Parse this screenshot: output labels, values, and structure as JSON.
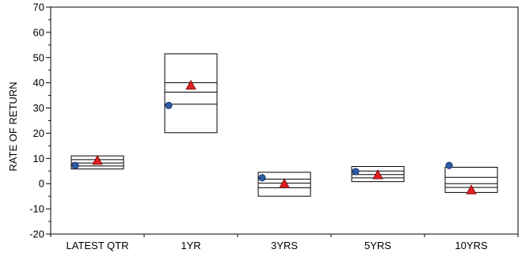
{
  "chart_data": {
    "type": "box",
    "ylabel": "RATE OF RETURN",
    "xlabel": "",
    "ylim": [
      -20,
      70
    ],
    "y_ticks": [
      -20,
      -10,
      0,
      10,
      20,
      30,
      40,
      50,
      60,
      70
    ],
    "y_tick_labels": [
      "-20",
      "-10",
      "0",
      "10",
      "20",
      "30",
      "40",
      "50",
      "60",
      "70"
    ],
    "categories": [
      "LATEST QTR",
      "1YR",
      "3YRS",
      "5YRS",
      "10YRS"
    ],
    "boxes": [
      {
        "max": 11.0,
        "q3": 9.5,
        "median": 8.2,
        "q1": 7.0,
        "min": 5.8
      },
      {
        "max": 51.5,
        "q3": 40.0,
        "median": 36.3,
        "q1": 31.5,
        "min": 20.2
      },
      {
        "max": 4.5,
        "q3": 1.8,
        "median": 0.2,
        "q1": -1.6,
        "min": -5.0
      },
      {
        "max": 6.8,
        "q3": 5.0,
        "median": 3.6,
        "q1": 2.3,
        "min": 0.8
      },
      {
        "max": 6.5,
        "q3": 2.5,
        "median": 0.0,
        "q1": -1.5,
        "min": -3.5
      }
    ],
    "series": [
      {
        "marker": "circle",
        "color": "#2e5aa8",
        "values": [
          7.2,
          31.0,
          2.3,
          4.8,
          7.2
        ]
      },
      {
        "marker": "triangle",
        "color": "#e02020",
        "values": [
          9.2,
          39.0,
          0.0,
          3.5,
          -2.5
        ]
      }
    ]
  }
}
